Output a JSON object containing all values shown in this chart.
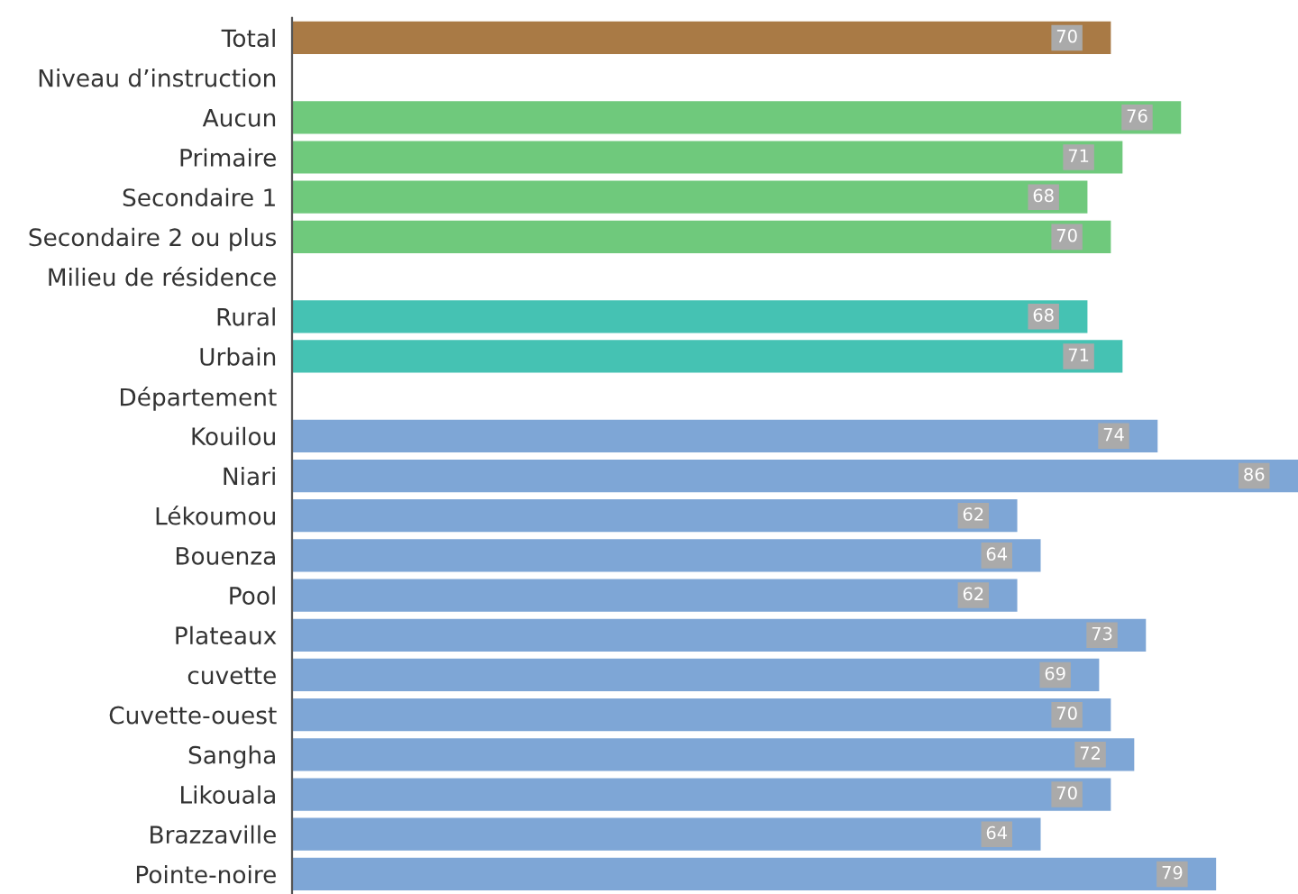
{
  "chart_data": {
    "type": "bar",
    "orientation": "horizontal",
    "data_labels": true,
    "grid": false,
    "categories": [
      "Total",
      "Niveau d’instruction",
      "Aucun",
      "Primaire",
      "Secondaire 1",
      "Secondaire 2 ou plus",
      "Milieu de résidence",
      "Rural",
      "Urbain",
      "Département",
      "Kouilou",
      "Niari",
      "Lékoumou",
      "Bouenza",
      "Pool",
      "Plateaux",
      "cuvette",
      "Cuvette-ouest",
      "Sangha",
      "Likouala",
      "Brazzaville",
      "Pointe-noire"
    ],
    "values": [
      70,
      null,
      76,
      71,
      68,
      70,
      null,
      68,
      71,
      null,
      74,
      86,
      62,
      64,
      62,
      73,
      69,
      70,
      72,
      70,
      64,
      79
    ],
    "colors": [
      "#a97a45",
      null,
      "#6fc97c",
      "#6fc97c",
      "#6fc97c",
      "#6fc97c",
      null,
      "#45c2b3",
      "#45c2b3",
      null,
      "#7ea6d6",
      "#7ea6d6",
      "#7ea6d6",
      "#7ea6d6",
      "#7ea6d6",
      "#7ea6d6",
      "#7ea6d6",
      "#7ea6d6",
      "#7ea6d6",
      "#7ea6d6",
      "#7ea6d6",
      "#7ea6d6"
    ],
    "xlim": [
      0,
      86
    ]
  }
}
